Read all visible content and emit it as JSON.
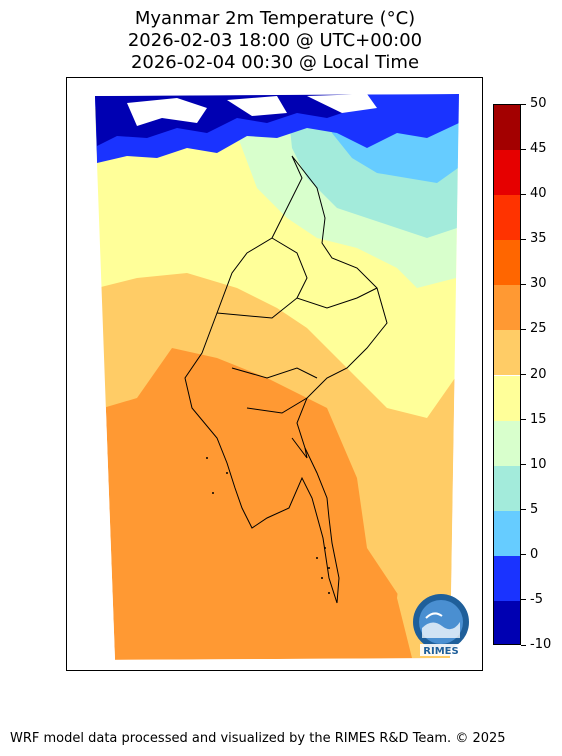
{
  "title": {
    "line1": "Myanmar 2m Temperature (°C)",
    "line2": "2026-02-03 18:00 @ UTC+00:00",
    "line3": "2026-02-04 00:30 @ Local Time"
  },
  "colorbar": {
    "unit": "°C",
    "min": -10,
    "max": 50,
    "tick_labels": [
      "50",
      "45",
      "40",
      "35",
      "30",
      "25",
      "20",
      "15",
      "10",
      "5",
      "0",
      "-5",
      "-10"
    ],
    "bins": [
      {
        "from": -10,
        "to": -5,
        "color": "#0000b2"
      },
      {
        "from": -5,
        "to": 0,
        "color": "#1a33ff"
      },
      {
        "from": 0,
        "to": 5,
        "color": "#66ccff"
      },
      {
        "from": 5,
        "to": 10,
        "color": "#a3ebdb"
      },
      {
        "from": 10,
        "to": 15,
        "color": "#d8ffcc"
      },
      {
        "from": 15,
        "to": 20,
        "color": "#ffff99"
      },
      {
        "from": 20,
        "to": 25,
        "color": "#ffcc66"
      },
      {
        "from": 25,
        "to": 30,
        "color": "#ff9933"
      },
      {
        "from": 30,
        "to": 35,
        "color": "#ff6600"
      },
      {
        "from": 35,
        "to": 40,
        "color": "#ff3300"
      },
      {
        "from": 40,
        "to": 45,
        "color": "#e60000"
      },
      {
        "from": 45,
        "to": 50,
        "color": "#a30000"
      }
    ]
  },
  "logo": {
    "text": "RIMES",
    "icon": "rimes-globe-icon"
  },
  "footer": {
    "text": "WRF model data processed and visualized by the RIMES R&D Team. © 2025"
  }
}
